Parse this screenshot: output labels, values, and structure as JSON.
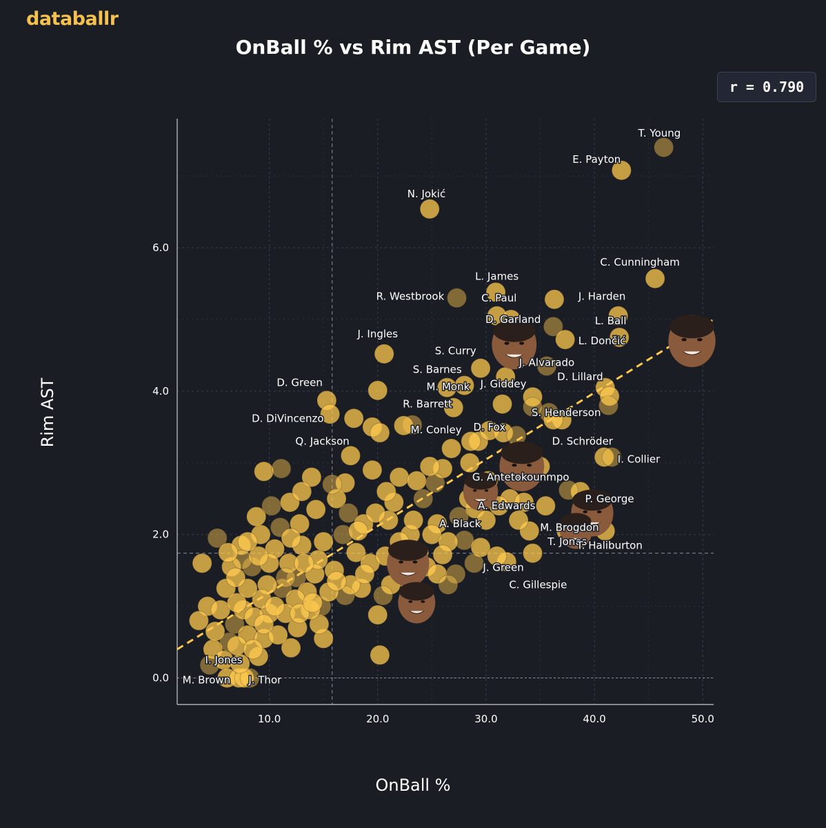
{
  "brand": "databallr",
  "r_label": "r = 0.790",
  "chart_data": {
    "type": "scatter",
    "title": "OnBall % vs Rim AST (Per Game)",
    "xlabel": "OnBall %",
    "ylabel": "Rim AST",
    "xlim": [
      1.5,
      51
    ],
    "ylim": [
      -0.37,
      7.8
    ],
    "xticks": [
      10,
      20,
      30,
      40,
      50
    ],
    "yticks": [
      0,
      2,
      4,
      6
    ],
    "grid": true,
    "reference_lines": {
      "x": 15.8,
      "y": 1.74
    },
    "trendline": {
      "x": [
        1.5,
        51
      ],
      "y": [
        0.4,
        5.0
      ]
    },
    "colors": {
      "point": "#ffc94d",
      "trend": "#ffc94d",
      "background": "#1b1d25",
      "grid": "#3a3f4c"
    },
    "labeled_points": [
      {
        "name": "T. Young",
        "x": 46.4,
        "y": 7.4
      },
      {
        "name": "E. Payton",
        "x": 42.5,
        "y": 7.08
      },
      {
        "name": "N. Jokić",
        "x": 24.8,
        "y": 6.54
      },
      {
        "name": "C. Cunningham",
        "x": 45.6,
        "y": 5.57
      },
      {
        "name": "L. James",
        "x": 30.9,
        "y": 5.38
      },
      {
        "name": "R. Westbrook",
        "x": 27.3,
        "y": 5.3
      },
      {
        "name": "C. Paul",
        "x": 31.0,
        "y": 5.05
      },
      {
        "name": "J. Harden",
        "x": 42.2,
        "y": 5.05
      },
      {
        "name": "D. Garland",
        "x": 32.2,
        "y": 4.9
      },
      {
        "name": "L. Ball",
        "x": 42.3,
        "y": 4.75
      },
      {
        "name": "L. Dončić",
        "x": 41.8,
        "y": 4.72
      },
      {
        "name": "J. Ingles",
        "x": 20.6,
        "y": 4.52
      },
      {
        "name": "S. Curry",
        "x": 29.5,
        "y": 4.32
      },
      {
        "name": "J. Alvarado",
        "x": 35.6,
        "y": 4.35
      },
      {
        "name": "S. Barnes",
        "x": 28.0,
        "y": 4.08
      },
      {
        "name": "D. Lillard",
        "x": 41.0,
        "y": 4.05
      },
      {
        "name": "M. Monk",
        "x": 26.8,
        "y": 4.05
      },
      {
        "name": "J. Giddey",
        "x": 32.0,
        "y": 4.18
      },
      {
        "name": "D. Green",
        "x": 15.3,
        "y": 3.87
      },
      {
        "name": "R. Barrett",
        "x": 27.0,
        "y": 3.77
      },
      {
        "name": "S. Henderson",
        "x": 34.3,
        "y": 3.78
      },
      {
        "name": "D. DiVincenzo",
        "x": 15.6,
        "y": 3.68
      },
      {
        "name": "M. Conley",
        "x": 23.2,
        "y": 3.53
      },
      {
        "name": "D. Fox",
        "x": 32.8,
        "y": 3.38
      },
      {
        "name": "Q. Jackson",
        "x": 17.5,
        "y": 3.1
      },
      {
        "name": "D. Schröder",
        "x": 40.9,
        "y": 3.08
      },
      {
        "name": "I. Collier",
        "x": 41.6,
        "y": 3.08
      },
      {
        "name": "G. Antetokounmpo",
        "x": 30.2,
        "y": 2.75
      },
      {
        "name": "P. George",
        "x": 38.7,
        "y": 2.6
      },
      {
        "name": "A. Edwards",
        "x": 32.2,
        "y": 2.5
      },
      {
        "name": "A. Black",
        "x": 29.0,
        "y": 2.36
      },
      {
        "name": "T. Jones",
        "x": 38.0,
        "y": 2.12
      },
      {
        "name": "M. Brogdon",
        "x": 37.4,
        "y": 2.05
      },
      {
        "name": "T. Haliburton",
        "x": 41.0,
        "y": 2.05
      },
      {
        "name": "J. Green",
        "x": 29.5,
        "y": 1.82
      },
      {
        "name": "C. Gillespie",
        "x": 31.9,
        "y": 1.62
      },
      {
        "name": "I. Jones",
        "x": 7.5,
        "y": 0.45
      },
      {
        "name": "M. Brown",
        "x": 6.1,
        "y": 0.0
      },
      {
        "name": "J. Thor",
        "x": 8.2,
        "y": 0.0
      }
    ],
    "label_text": [
      {
        "text": "T. Young",
        "x": 46.0,
        "y": 7.6,
        "anchor": "middle"
      },
      {
        "text": "E. Payton",
        "x": 40.2,
        "y": 7.23,
        "anchor": "middle"
      },
      {
        "text": "N. Jokić",
        "x": 24.5,
        "y": 6.75,
        "anchor": "middle"
      },
      {
        "text": "C. Cunningham",
        "x": 44.2,
        "y": 5.8,
        "anchor": "middle"
      },
      {
        "text": "L. James",
        "x": 31.0,
        "y": 5.6,
        "anchor": "middle"
      },
      {
        "text": "R. Westbrook",
        "x": 23.0,
        "y": 5.32,
        "anchor": "middle"
      },
      {
        "text": "C. Paul",
        "x": 31.2,
        "y": 5.3,
        "anchor": "middle"
      },
      {
        "text": "J. Harden",
        "x": 40.7,
        "y": 5.32,
        "anchor": "middle"
      },
      {
        "text": "D. Garland",
        "x": 32.5,
        "y": 5.0,
        "anchor": "middle"
      },
      {
        "text": "L. Ball",
        "x": 41.5,
        "y": 4.98,
        "anchor": "middle"
      },
      {
        "text": "L. Dončić",
        "x": 40.7,
        "y": 4.7,
        "anchor": "middle"
      },
      {
        "text": "J. Ingles",
        "x": 20.0,
        "y": 4.8,
        "anchor": "middle"
      },
      {
        "text": "S. Curry",
        "x": 29.1,
        "y": 4.56,
        "anchor": "end"
      },
      {
        "text": "J. Alvarado",
        "x": 35.6,
        "y": 4.4,
        "anchor": "middle"
      },
      {
        "text": "S. Barnes",
        "x": 25.5,
        "y": 4.3,
        "anchor": "middle"
      },
      {
        "text": "D. Lillard",
        "x": 40.8,
        "y": 4.2,
        "anchor": "end"
      },
      {
        "text": "M. Monk",
        "x": 26.5,
        "y": 4.06,
        "anchor": "middle"
      },
      {
        "text": "J. Giddey",
        "x": 31.6,
        "y": 4.1,
        "anchor": "middle"
      },
      {
        "text": "D. Green",
        "x": 12.8,
        "y": 4.12,
        "anchor": "middle"
      },
      {
        "text": "R. Barrett",
        "x": 24.6,
        "y": 3.82,
        "anchor": "middle"
      },
      {
        "text": "S. Henderson",
        "x": 37.4,
        "y": 3.7,
        "anchor": "middle"
      },
      {
        "text": "D. DiVincenzo",
        "x": 11.7,
        "y": 3.62,
        "anchor": "middle"
      },
      {
        "text": "M. Conley",
        "x": 25.4,
        "y": 3.46,
        "anchor": "middle"
      },
      {
        "text": "D. Fox",
        "x": 31.8,
        "y": 3.5,
        "anchor": "end"
      },
      {
        "text": "Q. Jackson",
        "x": 14.9,
        "y": 3.3,
        "anchor": "middle"
      },
      {
        "text": "D. Schröder",
        "x": 38.9,
        "y": 3.3,
        "anchor": "middle"
      },
      {
        "text": "I. Collier",
        "x": 44.1,
        "y": 3.05,
        "anchor": "middle"
      },
      {
        "text": "G. Antetokounmpo",
        "x": 33.2,
        "y": 2.8,
        "anchor": "middle"
      },
      {
        "text": "P. George",
        "x": 41.4,
        "y": 2.5,
        "anchor": "middle"
      },
      {
        "text": "A. Edwards",
        "x": 31.9,
        "y": 2.4,
        "anchor": "middle"
      },
      {
        "text": "A. Black",
        "x": 27.6,
        "y": 2.15,
        "anchor": "middle"
      },
      {
        "text": "T. Jones",
        "x": 37.5,
        "y": 1.9,
        "anchor": "middle"
      },
      {
        "text": "M. Brogdon",
        "x": 37.7,
        "y": 2.1,
        "anchor": "middle"
      },
      {
        "text": "T. Haliburton",
        "x": 41.4,
        "y": 1.85,
        "anchor": "middle"
      },
      {
        "text": "J. Green",
        "x": 31.6,
        "y": 1.54,
        "anchor": "middle"
      },
      {
        "text": "C. Gillespie",
        "x": 34.8,
        "y": 1.3,
        "anchor": "middle"
      },
      {
        "text": "I. Jones",
        "x": 5.8,
        "y": 0.25,
        "anchor": "middle"
      },
      {
        "text": "M. Brown",
        "x": 4.2,
        "y": -0.03,
        "anchor": "middle"
      },
      {
        "text": "J. Thor",
        "x": 9.6,
        "y": -0.03,
        "anchor": "middle"
      }
    ],
    "points": [
      [
        46.4,
        7.4
      ],
      [
        42.5,
        7.08
      ],
      [
        24.8,
        6.54
      ],
      [
        45.6,
        5.57
      ],
      [
        30.9,
        5.38
      ],
      [
        27.3,
        5.3
      ],
      [
        36.3,
        5.28
      ],
      [
        31.0,
        5.05
      ],
      [
        42.2,
        5.05
      ],
      [
        32.3,
        5.0
      ],
      [
        36.2,
        4.9
      ],
      [
        42.3,
        4.75
      ],
      [
        37.3,
        4.72
      ],
      [
        20.6,
        4.52
      ],
      [
        29.5,
        4.32
      ],
      [
        35.6,
        4.35
      ],
      [
        31.8,
        4.2
      ],
      [
        28.0,
        4.08
      ],
      [
        41.0,
        4.05
      ],
      [
        41.4,
        3.93
      ],
      [
        41.3,
        3.8
      ],
      [
        26.4,
        4.05
      ],
      [
        20.0,
        4.01
      ],
      [
        31.5,
        3.82
      ],
      [
        34.3,
        3.92
      ],
      [
        35.8,
        3.7
      ],
      [
        37.0,
        3.6
      ],
      [
        36.2,
        3.6
      ],
      [
        15.3,
        3.87
      ],
      [
        27.0,
        3.77
      ],
      [
        34.3,
        3.78
      ],
      [
        15.6,
        3.68
      ],
      [
        17.8,
        3.62
      ],
      [
        19.5,
        3.5
      ],
      [
        20.2,
        3.42
      ],
      [
        23.2,
        3.53
      ],
      [
        22.4,
        3.52
      ],
      [
        29.3,
        3.3
      ],
      [
        30.3,
        3.45
      ],
      [
        31.6,
        3.42
      ],
      [
        32.8,
        3.38
      ],
      [
        28.6,
        3.3
      ],
      [
        26.8,
        3.2
      ],
      [
        17.5,
        3.1
      ],
      [
        40.9,
        3.08
      ],
      [
        41.6,
        3.08
      ],
      [
        28.5,
        3.0
      ],
      [
        26.0,
        2.92
      ],
      [
        19.5,
        2.9
      ],
      [
        9.5,
        2.88
      ],
      [
        11.1,
        2.92
      ],
      [
        13.9,
        2.8
      ],
      [
        17.0,
        2.72
      ],
      [
        22.0,
        2.8
      ],
      [
        23.6,
        2.75
      ],
      [
        25.3,
        2.72
      ],
      [
        30.2,
        2.75
      ],
      [
        32.5,
        2.8
      ],
      [
        35.0,
        2.95
      ],
      [
        38.7,
        2.6
      ],
      [
        37.6,
        2.62
      ],
      [
        32.2,
        2.5
      ],
      [
        33.5,
        2.45
      ],
      [
        31.2,
        2.4
      ],
      [
        29.0,
        2.36
      ],
      [
        27.5,
        2.25
      ],
      [
        25.5,
        2.15
      ],
      [
        25.0,
        2.0
      ],
      [
        23.0,
        2.0
      ],
      [
        21.0,
        2.2
      ],
      [
        38.0,
        2.12
      ],
      [
        37.4,
        2.05
      ],
      [
        41.0,
        2.05
      ],
      [
        34.0,
        2.05
      ],
      [
        29.5,
        1.82
      ],
      [
        28.0,
        1.92
      ],
      [
        26.5,
        1.9
      ],
      [
        31.9,
        1.62
      ],
      [
        34.3,
        1.74
      ],
      [
        31.0,
        1.7
      ],
      [
        28.9,
        1.6
      ],
      [
        26.0,
        1.72
      ],
      [
        24.5,
        1.55
      ],
      [
        22.5,
        1.4
      ],
      [
        21.2,
        1.3
      ],
      [
        20.5,
        1.15
      ],
      [
        18.5,
        1.25
      ],
      [
        17.5,
        1.3
      ],
      [
        16.0,
        1.5
      ],
      [
        25.5,
        1.45
      ],
      [
        27.2,
        1.45
      ],
      [
        20.0,
        0.88
      ],
      [
        20.2,
        0.32
      ],
      [
        15.0,
        0.55
      ],
      [
        14.6,
        0.75
      ],
      [
        14.8,
        1.0
      ],
      [
        13.5,
        1.2
      ],
      [
        12.6,
        0.7
      ],
      [
        10.0,
        0.9
      ],
      [
        12.0,
        0.42
      ],
      [
        5.2,
        1.95
      ],
      [
        3.8,
        1.6
      ],
      [
        4.3,
        1.0
      ],
      [
        3.5,
        0.8
      ],
      [
        4.8,
        0.4
      ],
      [
        4.5,
        0.18
      ],
      [
        5.8,
        0.25
      ],
      [
        6.1,
        0.0
      ],
      [
        7.2,
        0.0
      ],
      [
        7.7,
        0.0
      ],
      [
        8.2,
        0.0
      ],
      [
        7.3,
        0.2
      ],
      [
        9.0,
        0.3
      ],
      [
        8.0,
        0.6
      ],
      [
        9.5,
        0.55
      ],
      [
        12.5,
        1.4
      ],
      [
        11.8,
        1.6
      ],
      [
        10.5,
        1.8
      ],
      [
        9.2,
        2.0
      ],
      [
        8.8,
        2.25
      ],
      [
        10.2,
        2.4
      ],
      [
        11.9,
        2.45
      ],
      [
        12.8,
        2.15
      ],
      [
        14.3,
        2.35
      ],
      [
        16.2,
        2.5
      ],
      [
        17.3,
        2.3
      ],
      [
        18.7,
        2.15
      ],
      [
        19.8,
        2.3
      ],
      [
        21.5,
        2.45
      ],
      [
        23.3,
        2.2
      ],
      [
        16.8,
        2.0
      ],
      [
        15.0,
        1.9
      ],
      [
        13.0,
        1.85
      ],
      [
        18.0,
        1.75
      ],
      [
        19.3,
        1.6
      ],
      [
        17.0,
        1.15
      ],
      [
        15.5,
        1.2
      ],
      [
        14.2,
        1.45
      ],
      [
        13.8,
        0.95
      ],
      [
        12.4,
        1.1
      ],
      [
        11.2,
        1.25
      ],
      [
        11.5,
        0.9
      ],
      [
        10.8,
        0.6
      ],
      [
        9.8,
        1.3
      ],
      [
        9.3,
        1.1
      ],
      [
        8.4,
        1.55
      ],
      [
        7.4,
        1.85
      ],
      [
        6.5,
        1.55
      ],
      [
        6.0,
        1.25
      ],
      [
        5.5,
        0.95
      ],
      [
        6.8,
        0.75
      ],
      [
        7.6,
        0.95
      ],
      [
        8.6,
        0.85
      ],
      [
        7.0,
        1.05
      ],
      [
        8.0,
        1.25
      ],
      [
        6.3,
        0.5
      ],
      [
        7.0,
        0.45
      ],
      [
        8.5,
        0.4
      ],
      [
        5.0,
        0.65
      ],
      [
        13.0,
        2.6
      ],
      [
        15.8,
        2.7
      ],
      [
        14.5,
        1.65
      ],
      [
        20.7,
        1.7
      ],
      [
        22.0,
        1.9
      ],
      [
        23.8,
        1.75
      ],
      [
        26.5,
        1.3
      ],
      [
        28.4,
        2.5
      ],
      [
        30.0,
        2.2
      ],
      [
        33.0,
        2.2
      ],
      [
        35.5,
        2.4
      ],
      [
        24.2,
        2.5
      ],
      [
        24.8,
        2.95
      ],
      [
        20.8,
        2.6
      ],
      [
        18.2,
        2.05
      ],
      [
        10.0,
        1.6
      ],
      [
        11.0,
        2.1
      ],
      [
        12.0,
        1.95
      ],
      [
        9.0,
        1.7
      ],
      [
        8.0,
        1.9
      ],
      [
        6.9,
        1.4
      ],
      [
        7.5,
        1.65
      ],
      [
        6.2,
        1.75
      ],
      [
        10.5,
        1.0
      ],
      [
        9.5,
        0.75
      ],
      [
        12.8,
        0.9
      ],
      [
        11.5,
        1.4
      ],
      [
        13.2,
        1.6
      ],
      [
        14.0,
        1.05
      ],
      [
        16.2,
        1.35
      ],
      [
        18.8,
        1.45
      ]
    ]
  }
}
